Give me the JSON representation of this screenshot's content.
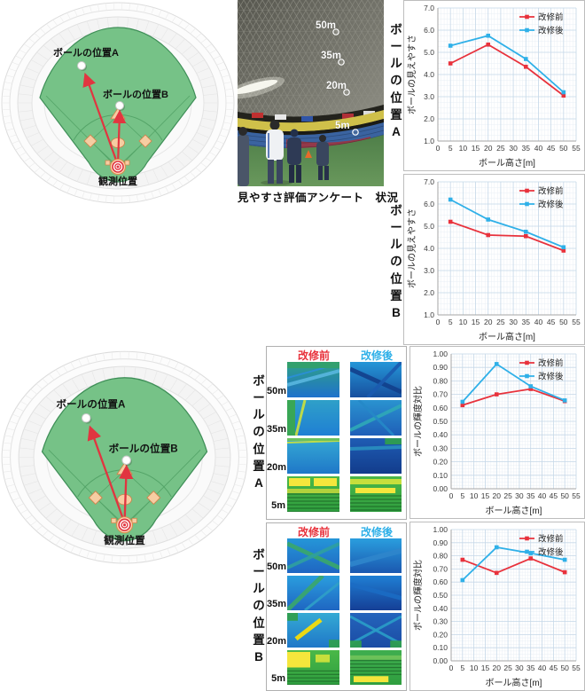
{
  "photo": {
    "caption": "見やすさ評価アンケート　状況",
    "height_markers": [
      "50m",
      "35m",
      "20m",
      "5m"
    ]
  },
  "field_diagram": {
    "ball_a_label": "ボールの位置A",
    "ball_b_label": "ボールの位置B",
    "observer_label": "観測位置"
  },
  "section_labels": {
    "top_a": "ボールの位置A",
    "top_b": "ボールの位置B",
    "bottom_a": "ボールの位置A",
    "bottom_b": "ボールの位置B"
  },
  "legend": {
    "before": "改修前",
    "after": "改修後"
  },
  "image_panels": {
    "a": {
      "before_header": "改修前",
      "after_header": "改修後",
      "row_labels": [
        "50m",
        "35m",
        "20m",
        "5m"
      ]
    },
    "b": {
      "before_header": "改修前",
      "after_header": "改修後",
      "row_labels": [
        "50m",
        "35m",
        "20m",
        "5m"
      ]
    }
  },
  "colors": {
    "before_red": "#e8323c",
    "after_blue": "#2fb0e8",
    "field_green": "#76c287",
    "arrow_red": "#e13540"
  },
  "chart_data": [
    {
      "id": "visibility_position_a",
      "type": "line",
      "position_label": "ボールの位置A",
      "xlabel": "ボール高さ[m]",
      "ylabel": "ボールの見えやすさ",
      "xlim": [
        0,
        55
      ],
      "xstep": 5,
      "xminor": 1.25,
      "ylim": [
        1.0,
        7.0
      ],
      "ystep": 1.0,
      "yminor": 0.25,
      "ydecimals": 1,
      "grid": true,
      "legend_position": "top-right",
      "x": [
        5,
        20,
        35,
        50
      ],
      "series": [
        {
          "name": "改修前",
          "color": "#e8323c",
          "values": [
            4.5,
            5.35,
            4.35,
            3.05
          ]
        },
        {
          "name": "改修後",
          "color": "#2fb0e8",
          "values": [
            5.3,
            5.75,
            4.7,
            3.2
          ]
        }
      ]
    },
    {
      "id": "visibility_position_b",
      "type": "line",
      "position_label": "ボールの位置B",
      "xlabel": "ボール高さ[m]",
      "ylabel": "ボールの見えやすさ",
      "xlim": [
        0,
        55
      ],
      "xstep": 5,
      "xminor": 1.25,
      "ylim": [
        1.0,
        7.0
      ],
      "ystep": 1.0,
      "yminor": 0.25,
      "ydecimals": 1,
      "grid": true,
      "legend_position": "top-right",
      "x": [
        5,
        20,
        35,
        50
      ],
      "series": [
        {
          "name": "改修前",
          "color": "#e8323c",
          "values": [
            5.2,
            4.6,
            4.55,
            3.9
          ]
        },
        {
          "name": "改修後",
          "color": "#2fb0e8",
          "values": [
            6.2,
            5.3,
            4.75,
            4.05
          ]
        }
      ]
    },
    {
      "id": "contrast_position_a",
      "type": "line",
      "position_label": "ボールの位置A",
      "xlabel": "ボール高さ[m]",
      "ylabel": "ボールの輝度対比",
      "xlim": [
        0,
        55
      ],
      "xstep": 5,
      "xminor": 1.25,
      "ylim": [
        0.0,
        1.0
      ],
      "ystep": 0.1,
      "yminor": 0.025,
      "ydecimals": 2,
      "grid": true,
      "legend_position": "top-right",
      "x": [
        5,
        20,
        35,
        50
      ],
      "series": [
        {
          "name": "改修前",
          "color": "#e8323c",
          "values": [
            0.62,
            0.7,
            0.74,
            0.65
          ]
        },
        {
          "name": "改修後",
          "color": "#2fb0e8",
          "values": [
            0.645,
            0.925,
            0.76,
            0.655
          ]
        }
      ]
    },
    {
      "id": "contrast_position_b",
      "type": "line",
      "position_label": "ボールの位置B",
      "xlabel": "ボール高さ[m]",
      "ylabel": "ボールの輝度対比",
      "xlim": [
        0,
        55
      ],
      "xstep": 5,
      "xminor": 1.25,
      "ylim": [
        0.0,
        1.0
      ],
      "ystep": 0.1,
      "yminor": 0.025,
      "ydecimals": 2,
      "grid": true,
      "legend_position": "top-right",
      "x": [
        5,
        20,
        35,
        50
      ],
      "series": [
        {
          "name": "改修前",
          "color": "#e8323c",
          "values": [
            0.77,
            0.67,
            0.78,
            0.675
          ]
        },
        {
          "name": "改修後",
          "color": "#2fb0e8",
          "values": [
            0.615,
            0.865,
            0.82,
            0.77
          ]
        }
      ]
    }
  ]
}
